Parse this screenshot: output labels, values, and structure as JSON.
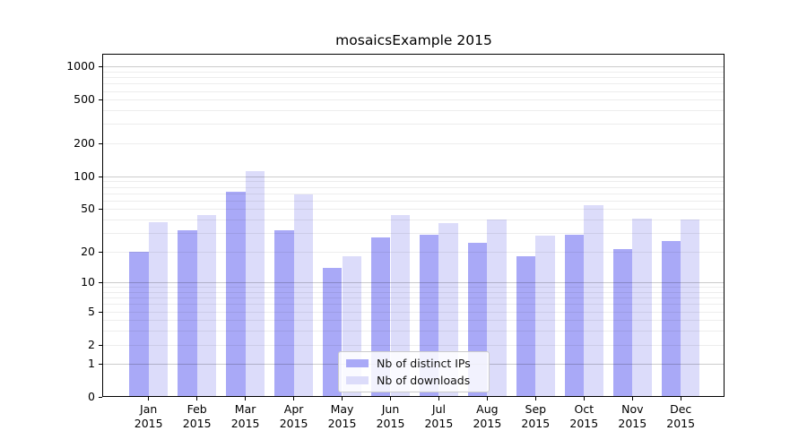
{
  "title": "mosaicsExample 2015",
  "colors": {
    "bar_ips": "#a9a9f7",
    "bar_downloads": "#dcdcfa",
    "grid_major": "rgba(0,0,0,0.20)",
    "grid_minor": "rgba(0,0,0,0.07)",
    "axis": "#000000",
    "legend_border": "#cccccc",
    "legend_bg": "rgba(255,255,255,0.85)"
  },
  "chart_data": {
    "type": "bar",
    "title": "mosaicsExample 2015",
    "categories": [
      "Jan 2015",
      "Feb 2015",
      "Mar 2015",
      "Apr 2015",
      "May 2015",
      "Jun 2015",
      "Jul 2015",
      "Aug 2015",
      "Sep 2015",
      "Oct 2015",
      "Nov 2015",
      "Dec 2015"
    ],
    "series": [
      {
        "name": "Nb of distinct IPs",
        "color": "#a9a9f7",
        "values": [
          20,
          32,
          72,
          32,
          14,
          27,
          29,
          24,
          18,
          29,
          21,
          25
        ]
      },
      {
        "name": "Nb of downloads",
        "color": "#dcdcfa",
        "values": [
          38,
          44,
          112,
          68,
          18,
          44,
          37,
          40,
          28,
          54,
          41,
          40
        ]
      }
    ],
    "xlabel": "",
    "ylabel": "",
    "yscale": "log1p",
    "ylim": [
      0,
      1305
    ],
    "yticks": [
      1000,
      500,
      200,
      100,
      50,
      20,
      10,
      5,
      2,
      1,
      0
    ],
    "ygrid_major": [
      1,
      10,
      100,
      1000
    ],
    "ygrid_minor": [
      2,
      3,
      4,
      5,
      6,
      7,
      8,
      9,
      20,
      30,
      40,
      50,
      60,
      70,
      80,
      90,
      200,
      300,
      400,
      500,
      600,
      700,
      800,
      900
    ],
    "grid": true,
    "legend_position": "lower center (inside axes)"
  }
}
